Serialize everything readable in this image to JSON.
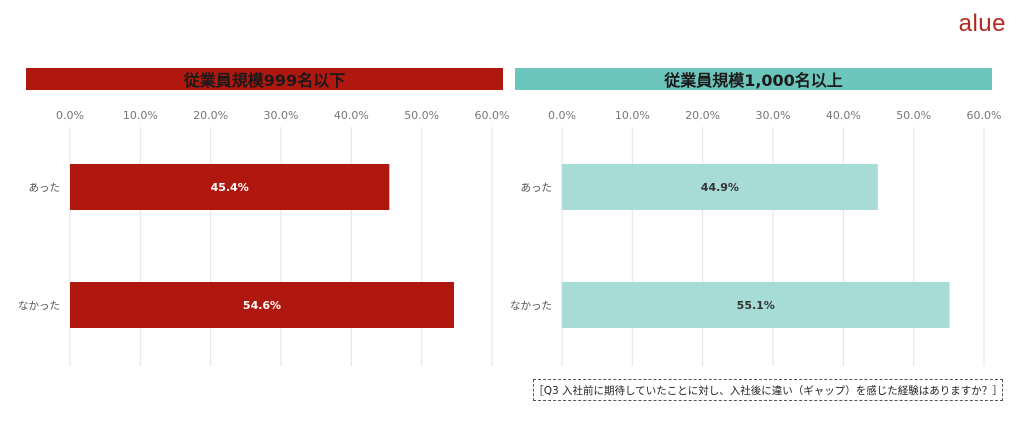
{
  "logo": {
    "text": "alue",
    "color": "#b5281f"
  },
  "question": "［Q3 入社前に期待していたことに対し、入社後に違い（ギャップ）を感じた経験はありますか？］",
  "chart_data": [
    {
      "type": "bar",
      "orientation": "horizontal",
      "title": "従業員規模999名以下",
      "header_color": "#b0180f",
      "bar_color": "#b0180f",
      "label_color": "#ffffff",
      "categories": [
        "あった",
        "なかった"
      ],
      "values": [
        45.4,
        54.6
      ],
      "data_labels": [
        "45.4%",
        "54.6%"
      ],
      "xlim": [
        0,
        60
      ],
      "xticks": [
        "0.0%",
        "10.0%",
        "20.0%",
        "30.0%",
        "40.0%",
        "50.0%",
        "60.0%"
      ],
      "grid": true
    },
    {
      "type": "bar",
      "orientation": "horizontal",
      "title": "従業員規模1,000名以上",
      "header_color": "#6cc6bc",
      "bar_color": "#a6dbd6",
      "label_color": "#333333",
      "categories": [
        "あった",
        "なかった"
      ],
      "values": [
        44.9,
        55.1
      ],
      "data_labels": [
        "44.9%",
        "55.1%"
      ],
      "xlim": [
        0,
        60
      ],
      "xticks": [
        "0.0%",
        "10.0%",
        "20.0%",
        "30.0%",
        "40.0%",
        "50.0%",
        "60.0%"
      ],
      "grid": true
    }
  ]
}
